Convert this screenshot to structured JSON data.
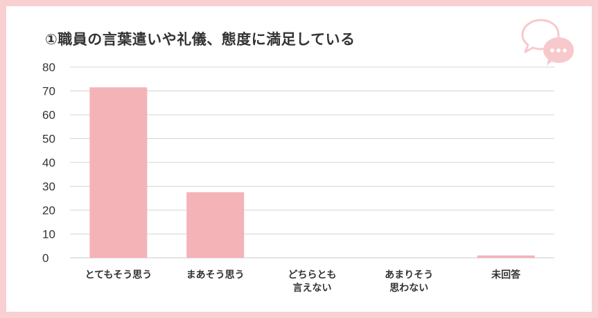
{
  "title": "①職員の言葉遣いや礼儀、態度に満足している",
  "icon": "speech-bubbles-icon",
  "colors": {
    "background": "#f9cfd2",
    "bar": "#f4b3b7",
    "grid": "#d4d4d4",
    "icon": "#f7c9cc"
  },
  "chart_data": {
    "type": "bar",
    "title": "①職員の言葉遣いや礼儀、態度に満足している",
    "categories": [
      "とてもそう思う",
      "まあそう思う",
      "どちらとも言えない",
      "あまりそう思わない",
      "未回答"
    ],
    "category_lines": [
      [
        "とてもそう思う"
      ],
      [
        "まあそう思う"
      ],
      [
        "どちらとも",
        "言えない"
      ],
      [
        "あまりそう",
        "思わない"
      ],
      [
        "未回答"
      ]
    ],
    "values": [
      71.5,
      27.5,
      0,
      0,
      1
    ],
    "ylim": [
      0,
      80
    ],
    "yticks": [
      0,
      10,
      20,
      30,
      40,
      50,
      60,
      70,
      80
    ],
    "xlabel": "",
    "ylabel": "",
    "grid": true,
    "legend": "none"
  }
}
